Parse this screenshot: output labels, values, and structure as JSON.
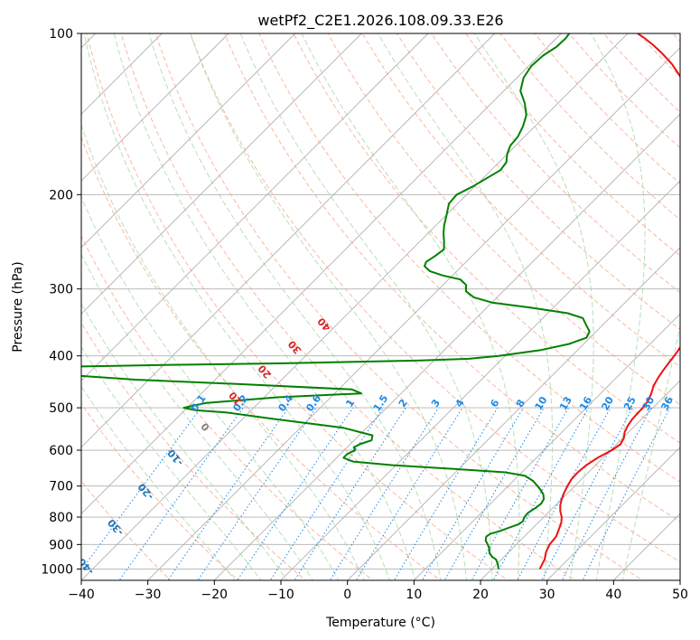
{
  "chart_data": {
    "type": "line",
    "subtype": "skew-T log-P diagram",
    "title": "wetPf2_C2E1.2026.108.09.33.E26",
    "xlabel": "Temperature (°C)",
    "ylabel": "Pressure (hPa)",
    "xlim": [
      -40,
      50
    ],
    "ylim": [
      1050,
      100
    ],
    "x_ticks": [
      -40,
      -30,
      -20,
      -10,
      0,
      10,
      20,
      30,
      40,
      50
    ],
    "y_ticks": [
      100,
      200,
      300,
      400,
      500,
      600,
      700,
      800,
      900,
      1000
    ],
    "grid": true,
    "dry_adiabat_labels": [
      "-100",
      "-90",
      "-80",
      "-70",
      "-60",
      "-50",
      "-40",
      "-30",
      "-20",
      "-10",
      "0",
      "10",
      "20",
      "30",
      "40"
    ],
    "mixing_ratio_labels": [
      "0.1",
      "0.2",
      "0.4",
      "0.6",
      "1",
      "1.5",
      "2",
      "3",
      "4",
      "6",
      "8",
      "10",
      "13",
      "16",
      "20",
      "25",
      "30",
      "36"
    ],
    "colors": {
      "temperature": "#ee1111",
      "dewpoint": "#008000",
      "isotherm": "#b0b0b0",
      "dry_adiabat": "#f8a080",
      "moist_adiabat": "#9bd29b",
      "mixing_ratio": "#1e88e5",
      "cold_label": "#1f77b4",
      "warm_label": "#d62728",
      "zero_label": "#808080"
    },
    "series": [
      {
        "name": "Temperature",
        "color": "#ee1111",
        "points": [
          [
            27.2,
            1000
          ],
          [
            26.5,
            960
          ],
          [
            25.6,
            930
          ],
          [
            25.0,
            900
          ],
          [
            24.8,
            870
          ],
          [
            24.3,
            850
          ],
          [
            23.5,
            820
          ],
          [
            22.7,
            800
          ],
          [
            21.6,
            780
          ],
          [
            20.7,
            760
          ],
          [
            20.0,
            740
          ],
          [
            19.4,
            720
          ],
          [
            18.9,
            700
          ],
          [
            18.5,
            680
          ],
          [
            18.4,
            660
          ],
          [
            18.6,
            640
          ],
          [
            19.2,
            620
          ],
          [
            20.2,
            600
          ],
          [
            20.6,
            585
          ],
          [
            20.2,
            570
          ],
          [
            19.4,
            555
          ],
          [
            18.9,
            540
          ],
          [
            18.6,
            525
          ],
          [
            18.5,
            510
          ],
          [
            18.5,
            500
          ],
          [
            18.2,
            485
          ],
          [
            17.6,
            470
          ],
          [
            16.8,
            455
          ],
          [
            16.3,
            440
          ],
          [
            15.9,
            425
          ],
          [
            15.6,
            410
          ],
          [
            15.3,
            395
          ],
          [
            15.0,
            385
          ],
          [
            14.6,
            375
          ],
          [
            14.0,
            365
          ],
          [
            13.2,
            350
          ],
          [
            12.3,
            335
          ],
          [
            11.2,
            320
          ],
          [
            9.8,
            305
          ],
          [
            8.5,
            293
          ],
          [
            7.2,
            282
          ],
          [
            5.8,
            270
          ],
          [
            4.3,
            259
          ],
          [
            2.8,
            248
          ],
          [
            1.1,
            237
          ],
          [
            -0.5,
            228
          ],
          [
            -2.0,
            218
          ],
          [
            -3.5,
            208
          ],
          [
            -5.0,
            199
          ],
          [
            -6.5,
            190
          ],
          [
            -8.1,
            181
          ],
          [
            -9.8,
            173
          ],
          [
            -11.4,
            166
          ],
          [
            -13.0,
            159
          ],
          [
            -14.8,
            152
          ],
          [
            -16.6,
            145
          ],
          [
            -18.5,
            139
          ],
          [
            -20.5,
            133
          ],
          [
            -23.0,
            126
          ],
          [
            -25.8,
            120
          ],
          [
            -28.8,
            114
          ],
          [
            -31.8,
            109
          ],
          [
            -34.5,
            105
          ],
          [
            -36.8,
            102
          ],
          [
            -38.5,
            100
          ]
        ]
      },
      {
        "name": "Dewpoint",
        "color": "#008000",
        "points": [
          [
            21.0,
            1000
          ],
          [
            20.2,
            980
          ],
          [
            19.7,
            970
          ],
          [
            19.2,
            960
          ],
          [
            18.3,
            950
          ],
          [
            17.3,
            935
          ],
          [
            16.5,
            915
          ],
          [
            15.7,
            900
          ],
          [
            14.8,
            885
          ],
          [
            14.3,
            870
          ],
          [
            14.5,
            860
          ],
          [
            15.5,
            850
          ],
          [
            16.3,
            838
          ],
          [
            17.3,
            825
          ],
          [
            17.5,
            815
          ],
          [
            17.1,
            800
          ],
          [
            17.0,
            785
          ],
          [
            17.4,
            770
          ],
          [
            17.6,
            755
          ],
          [
            17.3,
            740
          ],
          [
            16.5,
            725
          ],
          [
            15.3,
            710
          ],
          [
            14.4,
            700
          ],
          [
            13.0,
            685
          ],
          [
            11.0,
            670
          ],
          [
            7.5,
            660
          ],
          [
            -1.0,
            650
          ],
          [
            -10.5,
            640
          ],
          [
            -17.0,
            630
          ],
          [
            -19.0,
            620
          ],
          [
            -19.0,
            610
          ],
          [
            -18.4,
            600
          ],
          [
            -19.0,
            593
          ],
          [
            -18.6,
            585
          ],
          [
            -17.4,
            575
          ],
          [
            -18.0,
            563
          ],
          [
            -23.5,
            545
          ],
          [
            -35.0,
            525
          ],
          [
            -43.5,
            510
          ],
          [
            -48.5,
            505
          ],
          [
            -50.5,
            500
          ],
          [
            -48.0,
            490
          ],
          [
            -38.0,
            478
          ],
          [
            -26.0,
            470
          ],
          [
            -28.0,
            462
          ],
          [
            -45.0,
            452
          ],
          [
            -62.0,
            443
          ],
          [
            -72.0,
            435
          ],
          [
            -85.0,
            430
          ],
          [
            -92.0,
            428
          ],
          [
            -78.0,
            420
          ],
          [
            -60.0,
            416
          ],
          [
            -42.0,
            413
          ],
          [
            -30.0,
            410
          ],
          [
            -22.0,
            408
          ],
          [
            -15.0,
            405
          ],
          [
            -11.0,
            400
          ],
          [
            -5.5,
            390
          ],
          [
            -2.2,
            380
          ],
          [
            -0.5,
            370
          ],
          [
            -1.0,
            360
          ],
          [
            -2.5,
            350
          ],
          [
            -4.0,
            340
          ],
          [
            -7.0,
            333
          ],
          [
            -13.5,
            325
          ],
          [
            -20.0,
            318
          ],
          [
            -23.5,
            311
          ],
          [
            -25.6,
            303
          ],
          [
            -26.5,
            295
          ],
          [
            -28.2,
            288
          ],
          [
            -31.5,
            283
          ],
          [
            -34.0,
            278
          ],
          [
            -35.6,
            272
          ],
          [
            -36.0,
            267
          ],
          [
            -35.5,
            260
          ],
          [
            -35.2,
            253
          ],
          [
            -36.3,
            245
          ],
          [
            -37.7,
            236
          ],
          [
            -38.8,
            228
          ],
          [
            -40.0,
            218
          ],
          [
            -41.3,
            208
          ],
          [
            -41.5,
            200
          ],
          [
            -40.3,
            193
          ],
          [
            -39.4,
            186
          ],
          [
            -38.6,
            180
          ],
          [
            -38.9,
            174
          ],
          [
            -40.0,
            168
          ],
          [
            -40.8,
            162
          ],
          [
            -41.0,
            156
          ],
          [
            -41.8,
            149
          ],
          [
            -43.0,
            142
          ],
          [
            -45.0,
            135
          ],
          [
            -47.5,
            128
          ],
          [
            -49.0,
            121
          ],
          [
            -49.6,
            115
          ],
          [
            -49.4,
            110
          ],
          [
            -48.7,
            106
          ],
          [
            -48.6,
            102
          ],
          [
            -48.8,
            100
          ]
        ]
      }
    ]
  }
}
